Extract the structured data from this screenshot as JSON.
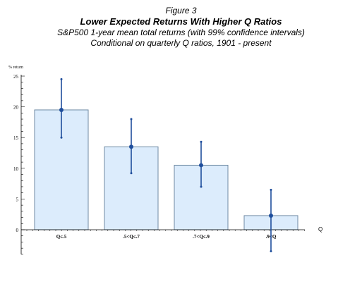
{
  "figure_label": "Figure 3",
  "title": "Lower Expected Returns With Higher Q Ratios",
  "subtitle_1": "S&P500 1-year mean total returns (with 99% confidence intervals)",
  "subtitle_2": "Conditional on quarterly Q ratios, 1901 - present",
  "chart_data": {
    "type": "bar",
    "title": "Lower Expected Returns With Higher Q Ratios",
    "ylabel": "% return",
    "xlabel": "Q",
    "ylim": [
      -4,
      25
    ],
    "yticks": [
      0,
      5,
      10,
      15,
      20,
      25
    ],
    "categories": [
      "Q≤.5",
      ".5<Q≤.7",
      ".7<Q≤.9",
      ".9<Q"
    ],
    "values": [
      19.5,
      13.5,
      10.5,
      2.3
    ],
    "error_low": [
      15.0,
      9.2,
      7.0,
      -3.5
    ],
    "error_high": [
      24.5,
      18.0,
      14.3,
      6.5
    ],
    "grid": false,
    "colors": {
      "bar_fill": "#dcecfc",
      "bar_stroke": "#6f8aa3",
      "error": "#1f4e9c",
      "point": "#1f4e9c",
      "axis": "#000000"
    }
  }
}
